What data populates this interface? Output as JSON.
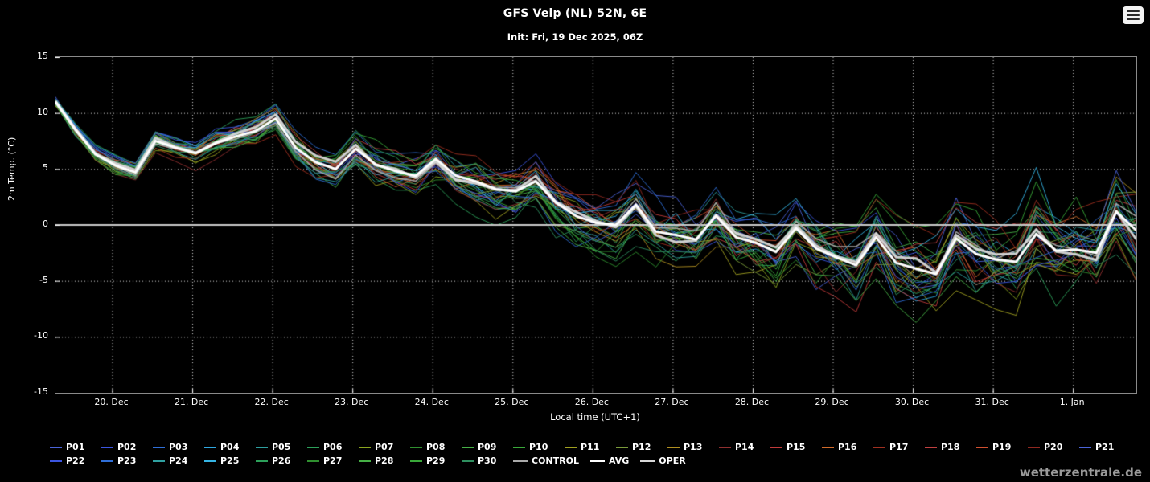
{
  "header": {
    "title": "GFS Velp (NL) 52N, 6E",
    "subtitle": "Init: Fri, 19 Dec 2025, 06Z"
  },
  "watermark": "wetterzentrale.de",
  "colors": {
    "background": "#000000",
    "grid": "#ffffff",
    "zero_line": "#c8c8c8",
    "text": "#ffffff",
    "watermark": "#9a9a9a",
    "border": "#8a8a8a"
  },
  "chart_data": {
    "type": "line",
    "title": "GFS Velp (NL) 52N, 6E",
    "subtitle": "Init: Fri, 19 Dec 2025, 06Z",
    "xlabel": "Local time (UTC+1)",
    "ylabel": "2m Temp. (°C)",
    "ylim": [
      -15,
      15
    ],
    "yticks": [
      15,
      10,
      5,
      0,
      -5,
      -10,
      -15
    ],
    "grid": "dotted",
    "legend_position": "bottom",
    "x_tick_labels": [
      "20. Dec",
      "21. Dec",
      "22. Dec",
      "23. Dec",
      "24. Dec",
      "25. Dec",
      "26. Dec",
      "27. Dec",
      "28. Dec",
      "29. Dec",
      "30. Dec",
      "31. Dec",
      "1. Jan"
    ],
    "step_hours": 6,
    "first_tick_offset_hours": 17,
    "avg": [
      11.0,
      8.5,
      6.3,
      5.3,
      4.7,
      7.5,
      6.9,
      6.4,
      7.3,
      7.9,
      8.4,
      9.5,
      6.9,
      5.6,
      5.0,
      6.8,
      5.4,
      4.8,
      4.4,
      5.9,
      4.4,
      3.9,
      3.2,
      3.0,
      3.9,
      2.0,
      0.8,
      0.2,
      0.0,
      1.8,
      -0.6,
      -0.9,
      -1.3,
      0.8,
      -1.1,
      -1.6,
      -2.4,
      -0.3,
      -2.1,
      -2.9,
      -3.6,
      -1.1,
      -3.4,
      -3.9,
      -4.4,
      -1.2,
      -2.6,
      -3.1,
      -3.3,
      -0.8,
      -2.3,
      -2.2,
      -2.5,
      1.2,
      -0.5
    ],
    "spread": [
      0.6,
      0.7,
      0.8,
      0.9,
      0.9,
      1.0,
      1.1,
      1.2,
      1.3,
      1.4,
      1.5,
      1.5,
      1.6,
      1.7,
      1.8,
      1.9,
      2.0,
      2.0,
      2.1,
      2.2,
      2.3,
      2.4,
      2.5,
      2.6,
      2.6,
      2.7,
      2.8,
      2.9,
      3.0,
      3.1,
      3.2,
      3.2,
      3.3,
      3.4,
      3.5,
      3.6,
      3.7,
      3.8,
      3.8,
      3.9,
      4.0,
      4.1,
      4.2,
      4.3,
      4.4,
      4.4,
      4.5,
      4.6,
      4.7,
      4.8,
      4.9,
      4.9,
      5.0,
      5.1,
      5.2
    ],
    "members": [
      {
        "name": "P01",
        "color": "#4a63d8"
      },
      {
        "name": "P02",
        "color": "#3b55e0"
      },
      {
        "name": "P03",
        "color": "#2f6fd8"
      },
      {
        "name": "P04",
        "color": "#2fa7e0"
      },
      {
        "name": "P05",
        "color": "#2e9e9e"
      },
      {
        "name": "P06",
        "color": "#2ca05a"
      },
      {
        "name": "P07",
        "color": "#8aa51f"
      },
      {
        "name": "P08",
        "color": "#2f8f2f"
      },
      {
        "name": "P09",
        "color": "#46b046"
      },
      {
        "name": "P10",
        "color": "#39a839"
      },
      {
        "name": "P11",
        "color": "#a0a020"
      },
      {
        "name": "P12",
        "color": "#7a9a3a"
      },
      {
        "name": "P13",
        "color": "#b08f20"
      },
      {
        "name": "P14",
        "color": "#8f2f2f"
      },
      {
        "name": "P15",
        "color": "#c03a3a"
      },
      {
        "name": "P16",
        "color": "#d06a2a"
      },
      {
        "name": "P17",
        "color": "#a03020"
      },
      {
        "name": "P18",
        "color": "#c04040"
      },
      {
        "name": "P19",
        "color": "#d05030"
      },
      {
        "name": "P20",
        "color": "#902820"
      },
      {
        "name": "P21",
        "color": "#4a63d8"
      },
      {
        "name": "P22",
        "color": "#3b55e0"
      },
      {
        "name": "P23",
        "color": "#2f6fd8"
      },
      {
        "name": "P24",
        "color": "#2fa0a0"
      },
      {
        "name": "P25",
        "color": "#35b5e5"
      },
      {
        "name": "P26",
        "color": "#2ca05a"
      },
      {
        "name": "P27",
        "color": "#2f8f2f"
      },
      {
        "name": "P28",
        "color": "#46b046"
      },
      {
        "name": "P29",
        "color": "#39a839"
      },
      {
        "name": "P30",
        "color": "#2e8f5f"
      }
    ],
    "special_series": [
      {
        "name": "CONTROL",
        "color": "#aaaaaa",
        "width": 1.5,
        "noise": 0.5
      },
      {
        "name": "AVG",
        "color": "#ffffff",
        "width": 3,
        "noise": 0
      },
      {
        "name": "OPER",
        "color": "#d8d8d8",
        "width": 3,
        "noise": 0.35
      }
    ]
  }
}
